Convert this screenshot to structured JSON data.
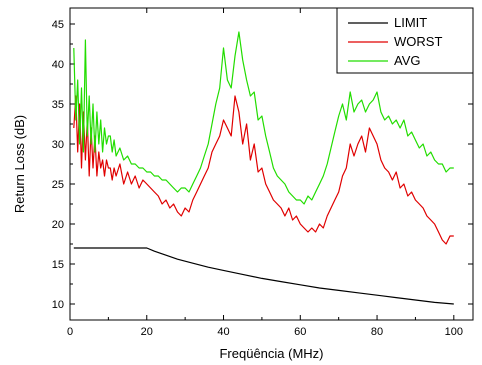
{
  "chart_data": {
    "type": "line",
    "title": "",
    "xlabel": "Freqüência (MHz)",
    "ylabel": "Return Loss (dB)",
    "xlim": [
      0,
      105
    ],
    "ylim": [
      8,
      47
    ],
    "xticks": [
      0,
      20,
      40,
      60,
      80,
      100
    ],
    "yticks": [
      10,
      15,
      20,
      25,
      30,
      35,
      40,
      45
    ],
    "grid": false,
    "legend_position": "top-right",
    "series": [
      {
        "name": "LIMIT",
        "color": "#000000",
        "x": [
          1,
          10,
          20,
          22,
          25,
          28,
          32,
          36,
          40,
          45,
          50,
          55,
          60,
          65,
          70,
          75,
          80,
          85,
          90,
          95,
          100
        ],
        "y": [
          17.0,
          17.0,
          17.0,
          16.6,
          16.1,
          15.6,
          15.1,
          14.6,
          14.2,
          13.7,
          13.2,
          12.8,
          12.4,
          12.0,
          11.7,
          11.4,
          11.1,
          10.8,
          10.5,
          10.2,
          10.0
        ]
      },
      {
        "name": "WORST",
        "color": "#e00000",
        "x": [
          1,
          1.5,
          2,
          2.5,
          3,
          3.5,
          4,
          4.5,
          5,
          5.5,
          6,
          6.5,
          7,
          7.5,
          8,
          8.5,
          9,
          9.5,
          10,
          10.5,
          11,
          11.5,
          12,
          13,
          14,
          15,
          16,
          17,
          18,
          19,
          20,
          21,
          22,
          23,
          24,
          25,
          26,
          27,
          28,
          29,
          30,
          31,
          32,
          33,
          34,
          35,
          36,
          37,
          38,
          39,
          40,
          41,
          42,
          43,
          44,
          45,
          46,
          47,
          48,
          49,
          50,
          51,
          52,
          53,
          54,
          55,
          56,
          57,
          58,
          59,
          60,
          61,
          62,
          63,
          64,
          65,
          66,
          67,
          68,
          69,
          70,
          71,
          72,
          73,
          74,
          75,
          76,
          77,
          78,
          79,
          80,
          81,
          82,
          83,
          84,
          85,
          86,
          87,
          88,
          89,
          90,
          91,
          92,
          93,
          94,
          95,
          96,
          97,
          98,
          99,
          100
        ],
        "y": [
          32,
          36,
          29,
          35,
          27,
          34,
          28,
          33,
          26,
          32,
          27,
          31,
          26,
          29,
          27,
          28,
          26,
          28,
          27,
          27,
          25.5,
          27,
          26,
          27.5,
          25,
          26.5,
          25,
          26,
          24.5,
          25.5,
          25,
          24.5,
          24,
          23.5,
          22.5,
          23,
          22,
          22.5,
          21.5,
          21,
          22,
          21.5,
          23,
          24,
          25,
          26,
          27,
          29,
          30,
          31,
          33,
          32,
          31,
          36,
          34,
          30,
          32.5,
          28,
          30,
          26.5,
          27,
          25,
          24,
          23,
          22.5,
          22,
          21,
          22,
          20.5,
          21,
          20,
          19.5,
          19,
          19.5,
          19,
          20,
          19.5,
          21,
          22,
          23,
          24,
          26,
          27,
          30,
          28.5,
          30,
          31,
          29,
          32,
          31,
          30,
          28,
          27,
          26.5,
          25.5,
          26.5,
          24.5,
          25,
          23.5,
          24,
          23,
          22.5,
          22,
          21,
          20.5,
          20,
          19,
          18,
          17.5,
          18.5,
          18.5
        ]
      },
      {
        "name": "AVG",
        "color": "#22dd00",
        "x": [
          1,
          1.5,
          2,
          2.5,
          3,
          3.5,
          4,
          4.5,
          5,
          5.5,
          6,
          6.5,
          7,
          7.5,
          8,
          8.5,
          9,
          9.5,
          10,
          10.5,
          11,
          11.5,
          12,
          13,
          14,
          15,
          16,
          17,
          18,
          19,
          20,
          21,
          22,
          23,
          24,
          25,
          26,
          27,
          28,
          29,
          30,
          31,
          32,
          33,
          34,
          35,
          36,
          37,
          38,
          39,
          40,
          41,
          42,
          43,
          44,
          45,
          46,
          47,
          48,
          49,
          50,
          51,
          52,
          53,
          54,
          55,
          56,
          57,
          58,
          59,
          60,
          61,
          62,
          63,
          64,
          65,
          66,
          67,
          68,
          69,
          70,
          71,
          72,
          73,
          74,
          75,
          76,
          77,
          78,
          79,
          80,
          81,
          82,
          83,
          84,
          85,
          86,
          87,
          88,
          89,
          90,
          91,
          92,
          93,
          94,
          95,
          96,
          97,
          98,
          99,
          100
        ],
        "y": [
          42,
          33,
          38,
          30,
          37,
          29,
          43,
          31,
          36,
          30,
          35,
          29,
          34,
          30,
          33,
          29,
          32,
          30,
          31,
          31,
          29,
          30.5,
          28.5,
          29.5,
          28,
          28.5,
          27.5,
          27.5,
          27,
          27,
          26.5,
          26.5,
          26,
          26,
          25.5,
          25.5,
          25,
          24.5,
          24,
          24.5,
          24.5,
          24,
          25,
          26,
          27,
          28.5,
          30,
          32.5,
          35,
          37,
          42,
          38,
          37,
          41,
          44,
          40.5,
          38,
          36,
          36.5,
          33,
          33.5,
          31,
          29,
          27,
          26,
          25.5,
          25,
          24,
          23.5,
          23,
          23,
          22.5,
          23.5,
          23,
          24,
          25,
          26,
          27.5,
          29.5,
          31.5,
          33.5,
          35,
          33,
          36.5,
          34,
          35,
          35.5,
          34,
          35,
          35.5,
          36.5,
          34,
          33,
          33.5,
          32.5,
          33,
          32,
          33,
          31,
          31.5,
          30.5,
          29.5,
          30,
          28.5,
          29,
          28,
          27.5,
          27.5,
          26.5,
          27,
          27
        ]
      }
    ]
  }
}
